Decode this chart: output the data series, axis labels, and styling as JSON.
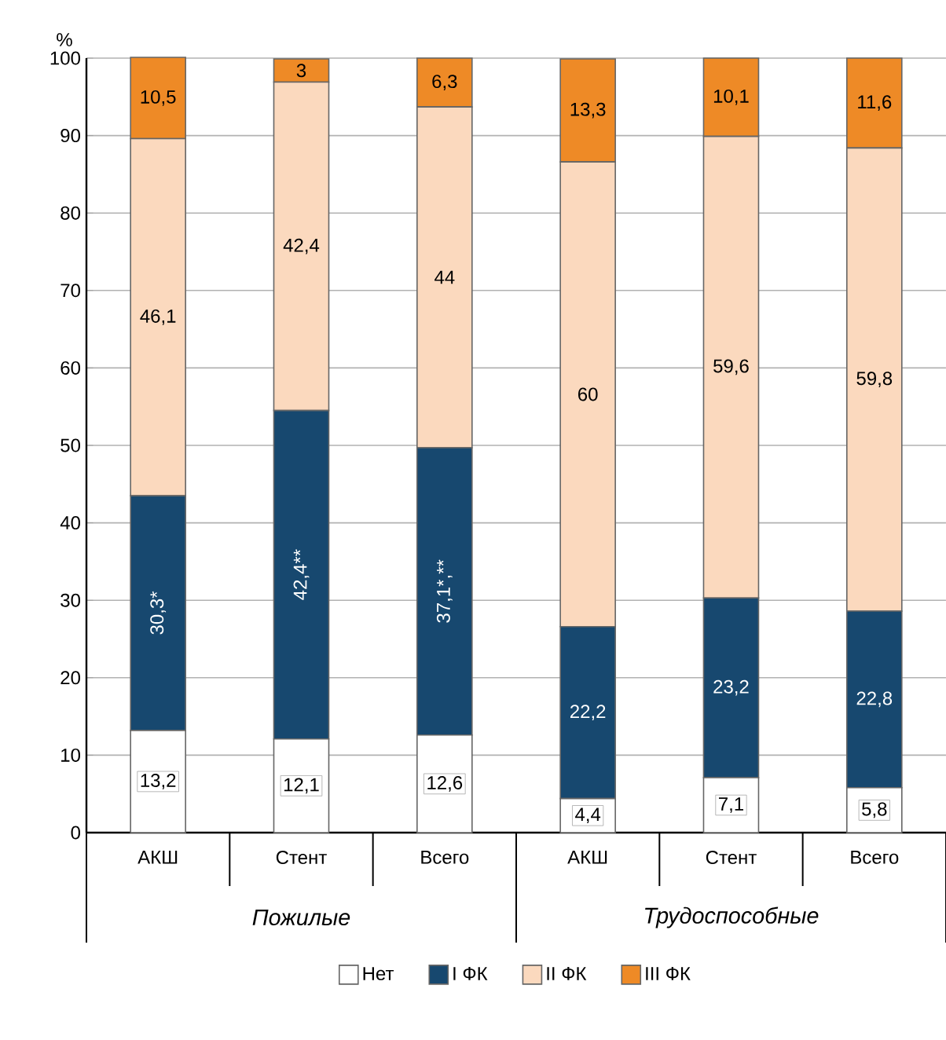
{
  "chart_data": {
    "type": "bar",
    "stacked": true,
    "ylabel": "%",
    "categories": [
      "АКШ",
      "Стент",
      "Всего",
      "АКШ",
      "Стент",
      "Всего"
    ],
    "annotations": [
      "Пожилые",
      "Трудоспособные"
    ],
    "series": [
      {
        "name": "Нет",
        "color": "#ffffff",
        "values": [
          13.2,
          12.1,
          12.6,
          4.4,
          7.1,
          5.8
        ],
        "value_labels": [
          "13,2",
          "12,1",
          "12,6",
          "4,4",
          "7,1",
          "5,8"
        ]
      },
      {
        "name": "I ФК",
        "color": "#17486f",
        "values": [
          30.3,
          42.4,
          37.1,
          22.2,
          23.2,
          22.8
        ],
        "value_labels": [
          "30,3*",
          "42,4**",
          "37,1*,**",
          "22,2",
          "23,2",
          "22,8"
        ]
      },
      {
        "name": "II ФК",
        "color": "#fbd9be",
        "values": [
          46.1,
          42.4,
          44,
          60,
          59.6,
          59.8
        ],
        "value_labels": [
          "46,1",
          "42,4",
          "44",
          "60",
          "59,6",
          "59,8"
        ]
      },
      {
        "name": "III ФК",
        "color": "#ee8a26",
        "values": [
          10.5,
          3,
          6.3,
          13.3,
          10.1,
          11.6
        ],
        "value_labels": [
          "10,5",
          "3",
          "6,3",
          "13,3",
          "10,1",
          "11,6"
        ]
      }
    ],
    "ylim": [
      0,
      100
    ],
    "yticks": [
      0,
      10,
      20,
      30,
      40,
      50,
      60,
      70,
      80,
      90,
      100
    ],
    "grid": "y",
    "legend": "bottom"
  }
}
